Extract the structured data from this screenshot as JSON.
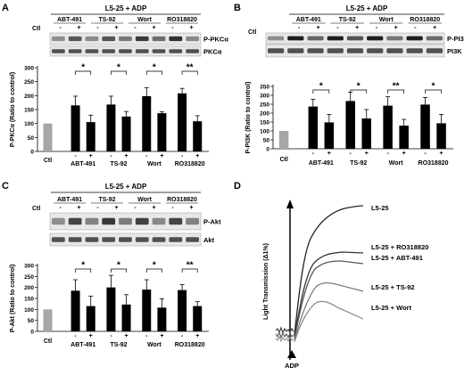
{
  "panels": {
    "A": {
      "letter": "A",
      "header": "L5-25 + ADP",
      "blot_labels": [
        "P-PKCα",
        "PKCα"
      ]
    },
    "B": {
      "letter": "B",
      "header": "L5-25 + ADP",
      "blot_labels": [
        "P-PI3K",
        "PI3K"
      ]
    },
    "C": {
      "letter": "C",
      "header": "L5-25 + ADP",
      "blot_labels": [
        "P-Akt",
        "Akt"
      ]
    },
    "D": {
      "letter": "D",
      "ylabel": "Light Transmission (Δ1%)",
      "agonist": "ADP",
      "traces": [
        "L5-25",
        "L5-25 + RO318820",
        "L5-25 + ABT-491",
        "L5-25 + TS-92",
        "L5-25 + Wort"
      ]
    }
  },
  "common": {
    "ctl": "Ctl",
    "minus": "-",
    "plus": "+",
    "groups": [
      "ABT-491",
      "TS-92",
      "Wort",
      "RO318820"
    ]
  },
  "chart_data": [
    {
      "type": "bar",
      "panel": "A",
      "ylabel": "P-PKCα (Ratio to control)",
      "ylim": [
        0,
        300
      ],
      "yticks": [
        0,
        50,
        100,
        150,
        200,
        250,
        300
      ],
      "categories": [
        "Ctl",
        "ABT-491 -",
        "ABT-491 +",
        "TS-92 -",
        "TS-92 +",
        "Wort -",
        "Wort +",
        "RO318820 -",
        "RO318820 +"
      ],
      "values": [
        100,
        165,
        105,
        168,
        125,
        198,
        137,
        208,
        108
      ],
      "errors": [
        0,
        33,
        25,
        30,
        18,
        30,
        5,
        18,
        20
      ],
      "significance": [
        "*",
        "*",
        "*",
        "**"
      ],
      "colors": {
        "control": "#a6a6a6",
        "treatment": "#000000"
      }
    },
    {
      "type": "bar",
      "panel": "B",
      "ylabel": "P-PI3K (Ratio to control)",
      "ylim": [
        0,
        350
      ],
      "yticks": [
        0,
        50,
        100,
        150,
        200,
        250,
        300,
        350
      ],
      "categories": [
        "Ctl",
        "ABT-491 -",
        "ABT-491 +",
        "TS-92 -",
        "TS-92 +",
        "Wort -",
        "Wort +",
        "RO318820 -",
        "RO318820 +"
      ],
      "values": [
        100,
        237,
        148,
        268,
        170,
        242,
        130,
        248,
        143
      ],
      "errors": [
        0,
        40,
        45,
        50,
        50,
        50,
        35,
        40,
        50
      ],
      "significance": [
        "*",
        "*",
        "**",
        "*"
      ],
      "colors": {
        "control": "#a6a6a6",
        "treatment": "#000000"
      }
    },
    {
      "type": "bar",
      "panel": "C",
      "ylabel": "P-Akt (Ratio to control)",
      "ylim": [
        0,
        300
      ],
      "yticks": [
        0,
        50,
        100,
        150,
        200,
        250,
        300
      ],
      "categories": [
        "Ctl",
        "ABT-491 -",
        "ABT-491 +",
        "TS-92 -",
        "TS-92 +",
        "Wort -",
        "Wort +",
        "RO318820 -",
        "RO318820 +"
      ],
      "values": [
        100,
        185,
        115,
        200,
        122,
        190,
        108,
        188,
        115
      ],
      "errors": [
        0,
        50,
        45,
        55,
        45,
        45,
        40,
        25,
        20
      ],
      "significance": [
        "*",
        "*",
        "*",
        "**"
      ],
      "colors": {
        "control": "#a6a6a6",
        "treatment": "#000000"
      }
    }
  ]
}
